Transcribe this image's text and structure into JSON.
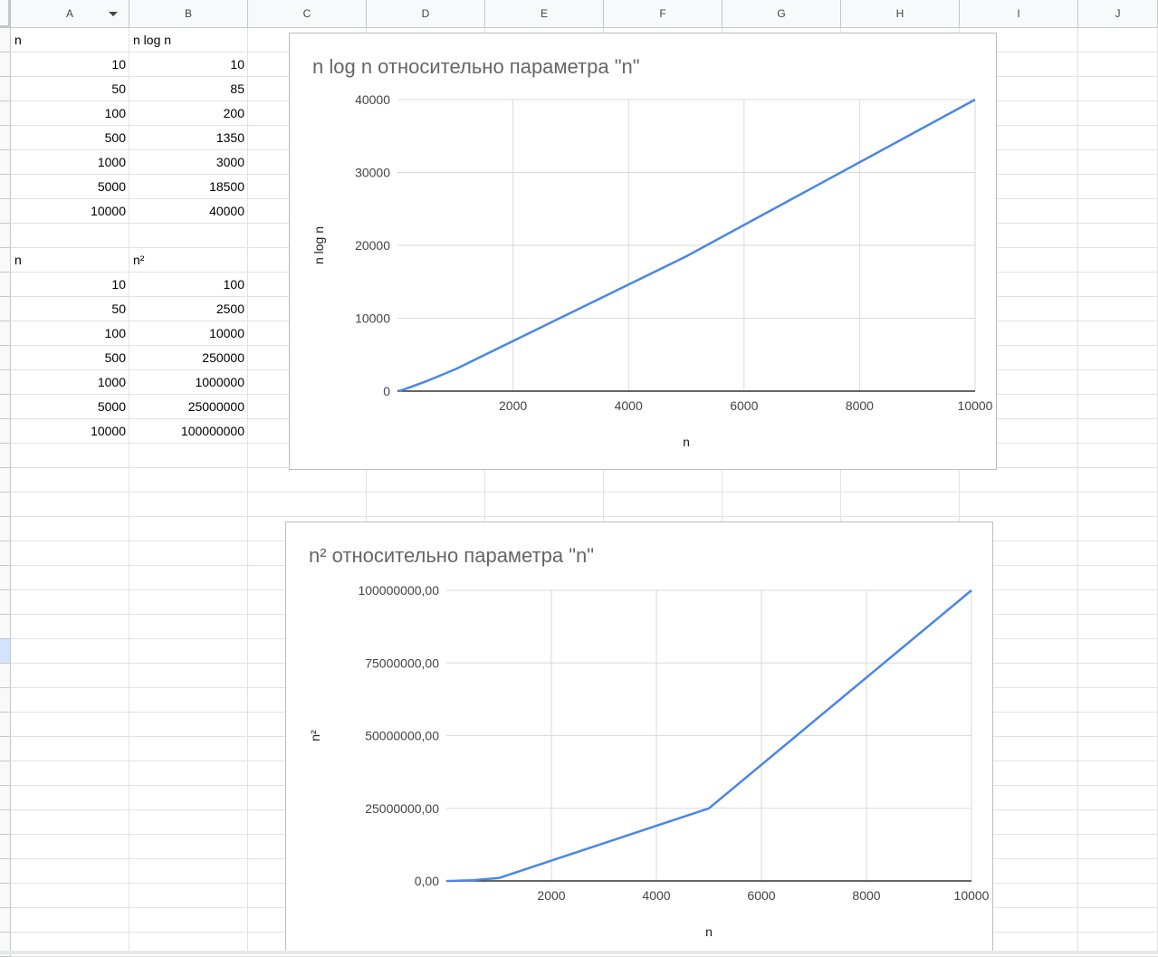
{
  "columns": [
    "A",
    "B",
    "C",
    "D",
    "E",
    "F",
    "G",
    "H",
    "I",
    "J"
  ],
  "table1": {
    "header": [
      "n",
      "n log n"
    ],
    "rows": [
      [
        "10",
        "10"
      ],
      [
        "50",
        "85"
      ],
      [
        "100",
        "200"
      ],
      [
        "500",
        "1350"
      ],
      [
        "1000",
        "3000"
      ],
      [
        "5000",
        "18500"
      ],
      [
        "10000",
        "40000"
      ]
    ]
  },
  "table2": {
    "header": [
      "n",
      "n²"
    ],
    "rows": [
      [
        "10",
        "100"
      ],
      [
        "50",
        "2500"
      ],
      [
        "100",
        "10000"
      ],
      [
        "500",
        "250000"
      ],
      [
        "1000",
        "1000000"
      ],
      [
        "5000",
        "25000000"
      ],
      [
        "10000",
        "100000000"
      ]
    ]
  },
  "colors": {
    "line": "#4a86e8",
    "grid": "#dadada",
    "axis": "#333333",
    "header_bg": "#f8f9fa",
    "active_row": "#d3e3fd"
  },
  "chart_data": [
    {
      "type": "line",
      "title": "n log n относительно параметра \"n\"",
      "xlabel": "n",
      "ylabel": "n log n",
      "x": [
        10,
        50,
        100,
        500,
        1000,
        5000,
        10000
      ],
      "series": [
        {
          "values": [
            10,
            85,
            200,
            1350,
            3000,
            18500,
            40000
          ]
        }
      ],
      "xlim": [
        0,
        10000
      ],
      "ylim": [
        0,
        40000
      ],
      "x_ticks": [
        "2000",
        "4000",
        "6000",
        "8000",
        "10000"
      ],
      "y_ticks": [
        "0",
        "10000",
        "20000",
        "30000",
        "40000"
      ],
      "grid": true
    },
    {
      "type": "line",
      "title": "n² относительно параметра \"n\"",
      "xlabel": "n",
      "ylabel": "n²",
      "x": [
        10,
        50,
        100,
        500,
        1000,
        5000,
        10000
      ],
      "series": [
        {
          "values": [
            100,
            2500,
            10000,
            250000,
            1000000,
            25000000,
            100000000
          ]
        }
      ],
      "xlim": [
        0,
        10000
      ],
      "ylim": [
        0,
        100000000
      ],
      "x_ticks": [
        "2000",
        "4000",
        "6000",
        "8000",
        "10000"
      ],
      "y_ticks": [
        "0,00",
        "25000000,00",
        "50000000,00",
        "75000000,00",
        "100000000,00"
      ],
      "grid": true
    }
  ]
}
